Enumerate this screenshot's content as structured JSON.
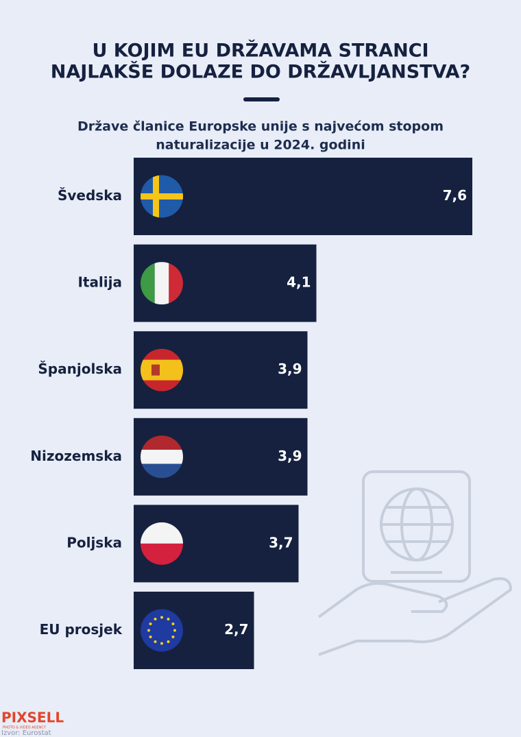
{
  "chart_data": {
    "type": "bar",
    "orientation": "horizontal",
    "title": [
      "U KOJIM EU DRŽAVAMA STRANCI",
      "NAJLAKŠE DOLAZE DO DRŽAVLJANSTVA?"
    ],
    "subtitle": [
      "Države članice Europske unije s najvećom stopom",
      "naturalizacije u 2024. godini"
    ],
    "categories": [
      "Švedska",
      "Italija",
      "Španjolska",
      "Nizozemska",
      "Poljska",
      "EU prosjek"
    ],
    "values": [
      7.6,
      4.1,
      3.9,
      3.9,
      3.7,
      2.7
    ],
    "value_labels": [
      "7,6",
      "4,1",
      "3,9",
      "3,9",
      "3,7",
      "2,7"
    ],
    "color": "#15213f",
    "logo": "PIXSELL",
    "logo_tagline": "PHOTO & VIDEO AGENCY",
    "source": "Izvor: Eurostat"
  }
}
